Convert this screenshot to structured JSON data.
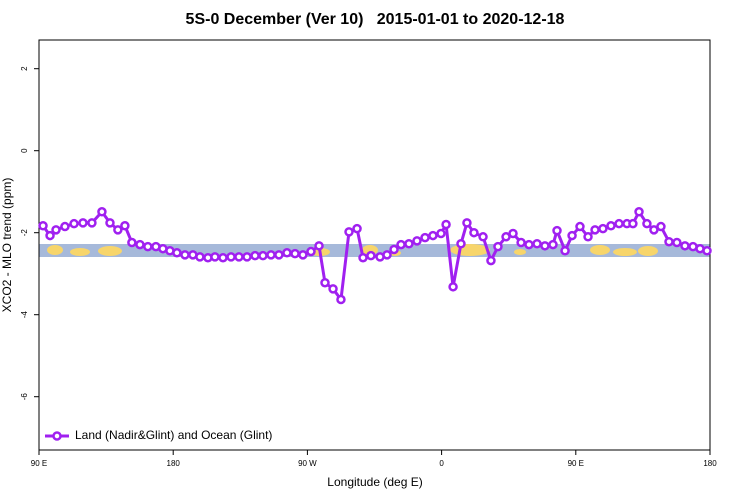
{
  "chart_data": {
    "type": "line",
    "title": "5S-0 December (Ver 10)   2015-01-01 to 2020-12-18",
    "x_label": "Longitude (deg E)",
    "y_label": "XCO2 - MLO trend (ppm)",
    "xlim": [
      90,
      540
    ],
    "ylim": [
      -7.3,
      2.7
    ],
    "xticks": [
      {
        "value": 90,
        "label": "90 E"
      },
      180,
      {
        "value": 270,
        "label": "90 W"
      },
      {
        "value": 360,
        "label": "0"
      },
      {
        "value": 450,
        "label": "90 E"
      },
      {
        "value": 540,
        "label": "180"
      }
    ],
    "yticks": [
      2,
      0,
      -2,
      -4,
      -6
    ],
    "legend": "bottom-left",
    "series": [
      {
        "name": "Land (Nadir&Glint) and Ocean (Glint)",
        "color": "#a020f0",
        "x": [
          92.7,
          97.4,
          101.4,
          107.4,
          113.5,
          119.5,
          125.5,
          132.2,
          137.6,
          142.9,
          147.6,
          152.3,
          157.7,
          163.0,
          168.4,
          173.1,
          177.8,
          182.5,
          187.9,
          193.2,
          197.9,
          203.3,
          208.0,
          213.4,
          218.8,
          224.1,
          229.5,
          234.9,
          240.2,
          245.6,
          250.9,
          256.3,
          261.7,
          267.0,
          272.4,
          277.8,
          281.8,
          287.2,
          292.5,
          297.9,
          303.3,
          307.3,
          312.6,
          318.7,
          323.4,
          328.1,
          332.8,
          338.1,
          343.5,
          348.9,
          354.2,
          359.6,
          363.0,
          367.7,
          373.0,
          377.0,
          381.7,
          387.8,
          393.1,
          397.8,
          403.2,
          407.9,
          413.3,
          418.6,
          424.0,
          429.3,
          434.7,
          437.4,
          442.8,
          447.5,
          452.8,
          458.2,
          462.9,
          468.2,
          473.6,
          479.0,
          484.3,
          488.3,
          492.4,
          497.7,
          502.4,
          507.1,
          512.5,
          517.8,
          523.2,
          528.6,
          533.3,
          538.0
        ],
        "values": [
          -1.83,
          -2.07,
          -1.93,
          -1.85,
          -1.78,
          -1.76,
          -1.76,
          -1.49,
          -1.76,
          -1.93,
          -1.83,
          -2.24,
          -2.29,
          -2.34,
          -2.34,
          -2.39,
          -2.44,
          -2.49,
          -2.54,
          -2.54,
          -2.59,
          -2.61,
          -2.59,
          -2.61,
          -2.59,
          -2.59,
          -2.59,
          -2.56,
          -2.56,
          -2.54,
          -2.54,
          -2.49,
          -2.51,
          -2.54,
          -2.46,
          -2.32,
          -3.22,
          -3.37,
          -3.63,
          -1.98,
          -1.9,
          -2.61,
          -2.56,
          -2.59,
          -2.54,
          -2.41,
          -2.29,
          -2.27,
          -2.2,
          -2.12,
          -2.07,
          -2.02,
          -1.8,
          -3.32,
          -2.27,
          -1.76,
          -2.0,
          -2.1,
          -2.68,
          -2.34,
          -2.1,
          -2.02,
          -2.24,
          -2.29,
          -2.27,
          -2.32,
          -2.29,
          -1.95,
          -2.44,
          -2.07,
          -1.85,
          -2.1,
          -1.93,
          -1.9,
          -1.83,
          -1.78,
          -1.78,
          -1.78,
          -1.49,
          -1.78,
          -1.93,
          -1.85,
          -2.22,
          -2.24,
          -2.32,
          -2.34,
          -2.39,
          -2.44
        ]
      }
    ]
  }
}
